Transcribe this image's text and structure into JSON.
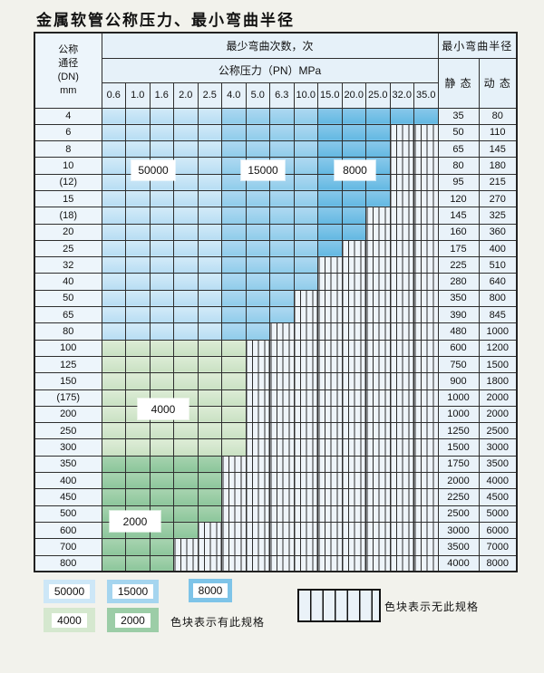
{
  "title": "金属软管公称压力、最小弯曲半径",
  "table": {
    "header": {
      "dn_lines": [
        "公称",
        "通径",
        "(DN)",
        "mm"
      ],
      "cycles_title": "最少弯曲次数，次",
      "pressure_title": "公称压力（PN）MPa",
      "pressures": [
        "0.6",
        "1.0",
        "1.6",
        "2.0",
        "2.5",
        "4.0",
        "5.0",
        "6.3",
        "10.0",
        "15.0",
        "20.0",
        "25.0",
        "32.0",
        "35.0"
      ],
      "radius_title": "最小弯曲半径",
      "static_label": "静 态",
      "dynamic_label": "动 态"
    },
    "cycle_zones": {
      "blue": [
        {
          "cycles": "50000",
          "col_start": 0,
          "col_end": 4
        },
        {
          "cycles": "15000",
          "col_start": 5,
          "col_end": 8
        },
        {
          "cycles": "8000",
          "col_start": 9,
          "col_end": 13
        }
      ],
      "green4": "4000",
      "green2": "2000"
    },
    "zone_labels": {
      "z50000": "50000",
      "z15000": "15000",
      "z8000": "8000",
      "z4000": "4000",
      "z2000": "2000"
    },
    "rows": [
      {
        "dn": "4",
        "colored": 14,
        "palette": "blue",
        "static": "35",
        "dynamic": "80"
      },
      {
        "dn": "6",
        "colored": 12,
        "palette": "blue",
        "static": "50",
        "dynamic": "110"
      },
      {
        "dn": "8",
        "colored": 12,
        "palette": "blue",
        "static": "65",
        "dynamic": "145"
      },
      {
        "dn": "10",
        "colored": 12,
        "palette": "blue",
        "static": "80",
        "dynamic": "180"
      },
      {
        "dn": "(12)",
        "colored": 12,
        "palette": "blue",
        "static": "95",
        "dynamic": "215"
      },
      {
        "dn": "15",
        "colored": 12,
        "palette": "blue",
        "static": "120",
        "dynamic": "270"
      },
      {
        "dn": "(18)",
        "colored": 11,
        "palette": "blue",
        "static": "145",
        "dynamic": "325"
      },
      {
        "dn": "20",
        "colored": 11,
        "palette": "blue",
        "static": "160",
        "dynamic": "360"
      },
      {
        "dn": "25",
        "colored": 10,
        "palette": "blue",
        "static": "175",
        "dynamic": "400"
      },
      {
        "dn": "32",
        "colored": 9,
        "palette": "blue",
        "static": "225",
        "dynamic": "510"
      },
      {
        "dn": "40",
        "colored": 9,
        "palette": "blue",
        "static": "280",
        "dynamic": "640"
      },
      {
        "dn": "50",
        "colored": 8,
        "palette": "blue",
        "static": "350",
        "dynamic": "800"
      },
      {
        "dn": "65",
        "colored": 8,
        "palette": "blue",
        "static": "390",
        "dynamic": "845"
      },
      {
        "dn": "80",
        "colored": 7,
        "palette": "blue",
        "static": "480",
        "dynamic": "1000"
      },
      {
        "dn": "100",
        "colored": 6,
        "palette": "green4",
        "static": "600",
        "dynamic": "1200"
      },
      {
        "dn": "125",
        "colored": 6,
        "palette": "green4",
        "static": "750",
        "dynamic": "1500"
      },
      {
        "dn": "150",
        "colored": 6,
        "palette": "green4",
        "static": "900",
        "dynamic": "1800"
      },
      {
        "dn": "(175)",
        "colored": 6,
        "palette": "green4",
        "static": "1000",
        "dynamic": "2000"
      },
      {
        "dn": "200",
        "colored": 6,
        "palette": "green4",
        "static": "1000",
        "dynamic": "2000"
      },
      {
        "dn": "250",
        "colored": 6,
        "palette": "green4",
        "static": "1250",
        "dynamic": "2500"
      },
      {
        "dn": "300",
        "colored": 6,
        "palette": "green4",
        "static": "1500",
        "dynamic": "3000"
      },
      {
        "dn": "350",
        "colored": 5,
        "palette": "green2",
        "static": "1750",
        "dynamic": "3500"
      },
      {
        "dn": "400",
        "colored": 5,
        "palette": "green2",
        "static": "2000",
        "dynamic": "4000"
      },
      {
        "dn": "450",
        "colored": 5,
        "palette": "green2",
        "static": "2250",
        "dynamic": "4500"
      },
      {
        "dn": "500",
        "colored": 5,
        "palette": "green2",
        "static": "2500",
        "dynamic": "5000"
      },
      {
        "dn": "600",
        "colored": 4,
        "palette": "green2",
        "static": "3000",
        "dynamic": "6000"
      },
      {
        "dn": "700",
        "colored": 3,
        "palette": "green2",
        "static": "3500",
        "dynamic": "7000"
      },
      {
        "dn": "800",
        "colored": 3,
        "palette": "green2",
        "static": "4000",
        "dynamic": "8000"
      }
    ]
  },
  "legend": {
    "blocks": [
      {
        "label": "50000",
        "color": "#cde7f7"
      },
      {
        "label": "15000",
        "color": "#a5d5ef"
      },
      {
        "label": "8000",
        "color": "#7ec4e8"
      },
      {
        "label": "4000",
        "color": "#d5e8cf"
      },
      {
        "label": "2000",
        "color": "#9ccda7"
      }
    ],
    "has_spec_text": "色块表示有此规格",
    "no_spec_text": "色块表示无此规格"
  },
  "colors": {
    "cycles_50000": "#c2e2f5",
    "cycles_15000": "#9ed2ee",
    "cycles_8000": "#74bfe6",
    "cycles_4000": "#d3e7cd",
    "cycles_2000": "#99cba5",
    "no_spec_bg": "#eef4f9",
    "grid_line": "#2e2e2e",
    "page_bg": "#f2f2ec"
  }
}
